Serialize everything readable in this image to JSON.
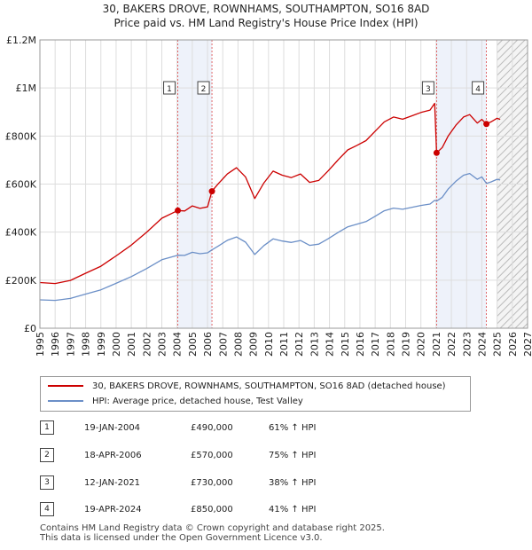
{
  "title_line1": "30, BAKERS DROVE, ROWNHAMS, SOUTHAMPTON, SO16 8AD",
  "title_line2": "Price paid vs. HM Land Registry's House Price Index (HPI)",
  "colors": {
    "property": "#cc0000",
    "hpi": "#6b8fc7",
    "grid": "#dddddd",
    "band": "#eef2fa"
  },
  "chart_data": {
    "type": "line",
    "y_axis": {
      "min": 0,
      "max": 1200000,
      "ticks": [
        0,
        200000,
        400000,
        600000,
        800000,
        1000000,
        1200000
      ],
      "tick_labels": [
        "£0",
        "£200K",
        "£400K",
        "£600K",
        "£800K",
        "£1M",
        "£1.2M"
      ]
    },
    "x_axis": {
      "min": 1995,
      "max": 2027,
      "ticks": [
        1995,
        1996,
        1997,
        1998,
        1999,
        2000,
        2001,
        2002,
        2003,
        2004,
        2005,
        2006,
        2007,
        2008,
        2009,
        2010,
        2011,
        2012,
        2013,
        2014,
        2015,
        2016,
        2017,
        2018,
        2019,
        2020,
        2021,
        2022,
        2023,
        2024,
        2025,
        2026,
        2027
      ]
    },
    "forecast_start": 2025.0,
    "sale_bands": [
      [
        2004.05,
        2006.29
      ],
      [
        2021.03,
        2024.3
      ]
    ],
    "series": [
      {
        "name": "30, BAKERS DROVE, ROWNHAMS, SOUTHAMPTON, SO16 8AD (detached house)",
        "color": "#cc0000",
        "points": [
          [
            1995.0,
            190000
          ],
          [
            1996.0,
            186000
          ],
          [
            1997.0,
            199000
          ],
          [
            1998.0,
            229000
          ],
          [
            1999.0,
            258000
          ],
          [
            2000.0,
            301000
          ],
          [
            2001.0,
            346000
          ],
          [
            2002.0,
            399000
          ],
          [
            2003.0,
            458000
          ],
          [
            2004.05,
            490000
          ],
          [
            2004.5,
            488000
          ],
          [
            2005.0,
            509000
          ],
          [
            2005.5,
            499000
          ],
          [
            2006.0,
            505000
          ],
          [
            2006.29,
            570000
          ],
          [
            2006.7,
            601000
          ],
          [
            2007.3,
            642000
          ],
          [
            2007.9,
            668000
          ],
          [
            2008.5,
            629000
          ],
          [
            2009.1,
            540000
          ],
          [
            2009.7,
            605000
          ],
          [
            2010.3,
            654000
          ],
          [
            2010.9,
            637000
          ],
          [
            2011.5,
            627000
          ],
          [
            2012.1,
            642000
          ],
          [
            2012.7,
            607000
          ],
          [
            2013.3,
            615000
          ],
          [
            2013.9,
            654000
          ],
          [
            2014.6,
            703000
          ],
          [
            2015.2,
            742000
          ],
          [
            2015.8,
            761000
          ],
          [
            2016.4,
            781000
          ],
          [
            2017.0,
            820000
          ],
          [
            2017.6,
            859000
          ],
          [
            2018.2,
            879000
          ],
          [
            2018.8,
            870000
          ],
          [
            2019.4,
            884000
          ],
          [
            2020.0,
            898000
          ],
          [
            2020.6,
            908000
          ],
          [
            2020.9,
            936000
          ],
          [
            2021.03,
            730000
          ],
          [
            2021.4,
            752000
          ],
          [
            2021.8,
            801000
          ],
          [
            2022.3,
            845000
          ],
          [
            2022.8,
            879000
          ],
          [
            2023.2,
            889000
          ],
          [
            2023.7,
            854000
          ],
          [
            2024.0,
            869000
          ],
          [
            2024.3,
            850000
          ],
          [
            2024.6,
            859000
          ],
          [
            2025.0,
            874000
          ],
          [
            2025.2,
            869000
          ]
        ]
      },
      {
        "name": "HPI: Average price, detached house, Test Valley",
        "color": "#6b8fc7",
        "points": [
          [
            1995.0,
            118000
          ],
          [
            1996.0,
            116000
          ],
          [
            1997.0,
            124000
          ],
          [
            1998.0,
            142000
          ],
          [
            1999.0,
            160000
          ],
          [
            2000.0,
            187000
          ],
          [
            2001.0,
            215000
          ],
          [
            2002.0,
            248000
          ],
          [
            2003.0,
            285000
          ],
          [
            2004.05,
            304000
          ],
          [
            2004.5,
            303000
          ],
          [
            2005.0,
            316000
          ],
          [
            2005.5,
            310000
          ],
          [
            2006.0,
            314000
          ],
          [
            2006.29,
            326000
          ],
          [
            2006.7,
            342000
          ],
          [
            2007.3,
            366000
          ],
          [
            2007.9,
            380000
          ],
          [
            2008.5,
            358000
          ],
          [
            2009.1,
            307000
          ],
          [
            2009.7,
            344000
          ],
          [
            2010.3,
            372000
          ],
          [
            2010.9,
            363000
          ],
          [
            2011.5,
            357000
          ],
          [
            2012.1,
            365000
          ],
          [
            2012.7,
            345000
          ],
          [
            2013.3,
            350000
          ],
          [
            2013.9,
            372000
          ],
          [
            2014.6,
            400000
          ],
          [
            2015.2,
            422000
          ],
          [
            2015.8,
            433000
          ],
          [
            2016.4,
            444000
          ],
          [
            2017.0,
            466000
          ],
          [
            2017.6,
            489000
          ],
          [
            2018.2,
            500000
          ],
          [
            2018.8,
            495000
          ],
          [
            2019.4,
            503000
          ],
          [
            2020.0,
            511000
          ],
          [
            2020.6,
            517000
          ],
          [
            2020.9,
            532000
          ],
          [
            2021.03,
            529000
          ],
          [
            2021.4,
            545000
          ],
          [
            2021.8,
            580000
          ],
          [
            2022.3,
            612000
          ],
          [
            2022.8,
            637000
          ],
          [
            2023.2,
            644000
          ],
          [
            2023.7,
            620000
          ],
          [
            2024.0,
            630000
          ],
          [
            2024.3,
            603000
          ],
          [
            2024.6,
            609000
          ],
          [
            2025.0,
            620000
          ],
          [
            2025.2,
            617000
          ]
        ]
      }
    ],
    "markers": [
      {
        "label": "1",
        "x": 2004.05,
        "y": 490000
      },
      {
        "label": "2",
        "x": 2006.29,
        "y": 570000
      },
      {
        "label": "3",
        "x": 2021.03,
        "y": 730000
      },
      {
        "label": "4",
        "x": 2024.3,
        "y": 850000
      }
    ]
  },
  "legend": {
    "property_label": "30, BAKERS DROVE, ROWNHAMS, SOUTHAMPTON, SO16 8AD (detached house)",
    "hpi_label": "HPI: Average price, detached house, Test Valley"
  },
  "transactions": [
    {
      "num": "1",
      "date": "19-JAN-2004",
      "price": "£490,000",
      "hpi": "61% ↑ HPI"
    },
    {
      "num": "2",
      "date": "18-APR-2006",
      "price": "£570,000",
      "hpi": "75% ↑ HPI"
    },
    {
      "num": "3",
      "date": "12-JAN-2021",
      "price": "£730,000",
      "hpi": "38% ↑ HPI"
    },
    {
      "num": "4",
      "date": "19-APR-2024",
      "price": "£850,000",
      "hpi": "41% ↑ HPI"
    }
  ],
  "footer_line1": "Contains HM Land Registry data © Crown copyright and database right 2025.",
  "footer_line2": "This data is licensed under the Open Government Licence v3.0."
}
